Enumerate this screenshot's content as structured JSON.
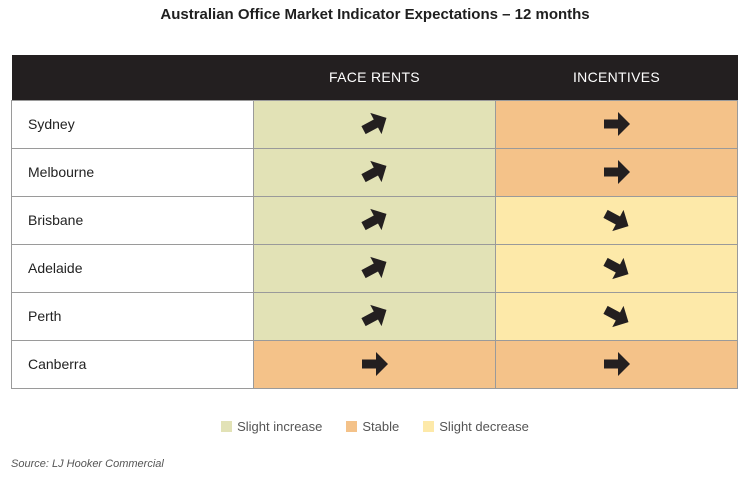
{
  "title": "Australian Office Market Indicator Expectations – 12 months",
  "source": "Source: LJ Hooker Commercial",
  "colors": {
    "header_bg": "#231f20",
    "slight_increase": "#e2e2b6",
    "stable": "#f4c289",
    "slight_decrease": "#fde9a9",
    "arrow": "#231f20"
  },
  "chart_data": {
    "type": "table",
    "title": "Australian Office Market Indicator Expectations – 12 months",
    "columns": [
      "",
      "FACE RENTS",
      "INCENTIVES"
    ],
    "legend": [
      {
        "key": "slight_increase",
        "label": "Slight increase",
        "color": "#e2e2b6"
      },
      {
        "key": "stable",
        "label": "Stable",
        "color": "#f4c289"
      },
      {
        "key": "slight_decrease",
        "label": "Slight decrease",
        "color": "#fde9a9"
      }
    ],
    "legend_placement": "bottom",
    "rows": [
      {
        "city": "Sydney",
        "face_rents": {
          "status": "slight_increase",
          "arrow": "up-right"
        },
        "incentives": {
          "status": "stable",
          "arrow": "right"
        }
      },
      {
        "city": "Melbourne",
        "face_rents": {
          "status": "slight_increase",
          "arrow": "up-right"
        },
        "incentives": {
          "status": "stable",
          "arrow": "right"
        }
      },
      {
        "city": "Brisbane",
        "face_rents": {
          "status": "slight_increase",
          "arrow": "up-right"
        },
        "incentives": {
          "status": "slight_decrease",
          "arrow": "down-right"
        }
      },
      {
        "city": "Adelaide",
        "face_rents": {
          "status": "slight_increase",
          "arrow": "up-right"
        },
        "incentives": {
          "status": "slight_decrease",
          "arrow": "down-right"
        }
      },
      {
        "city": "Perth",
        "face_rents": {
          "status": "slight_increase",
          "arrow": "up-right"
        },
        "incentives": {
          "status": "slight_decrease",
          "arrow": "down-right"
        }
      },
      {
        "city": "Canberra",
        "face_rents": {
          "status": "stable",
          "arrow": "right"
        },
        "incentives": {
          "status": "stable",
          "arrow": "right"
        }
      }
    ]
  }
}
